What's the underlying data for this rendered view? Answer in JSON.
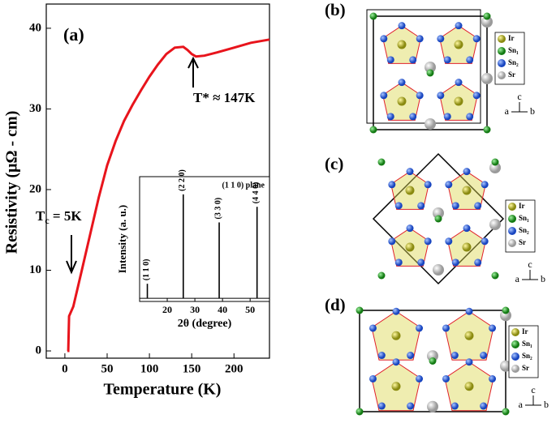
{
  "chart_data": {
    "type": "line",
    "label": "(a)",
    "x_label": "Temperature  (K)",
    "y_label": "Resistivity  (μΩ - cm)",
    "xlim": [
      -22,
      242
    ],
    "ylim": [
      -0.9,
      43
    ],
    "xticks": [
      0,
      50,
      100,
      150,
      200
    ],
    "yticks": [
      0,
      10,
      20,
      30,
      40
    ],
    "x": [
      3,
      4,
      5,
      10,
      20,
      30,
      40,
      50,
      60,
      70,
      80,
      90,
      100,
      110,
      120,
      130,
      140,
      145,
      150,
      155,
      165,
      180,
      200,
      220,
      242
    ],
    "series": [
      {
        "color": "#e8141c",
        "values": [
          0,
          0,
          4.3,
          5.5,
          10,
          14.5,
          19,
          23,
          26,
          28.5,
          30.5,
          32.3,
          34,
          35.5,
          36.8,
          37.6,
          37.7,
          37.3,
          36.8,
          36.5,
          36.6,
          37,
          37.6,
          38.2,
          38.6
        ]
      }
    ],
    "annotations": {
      "tstar": "T* ≈ 147K",
      "tc_symbol": "T",
      "tc_sub": "c",
      "tc_rest": " = 5K"
    },
    "inset": {
      "type": "bar",
      "title": "(1 1 0) plane",
      "x_label": "2θ (degree)",
      "y_label": "Intensity  (a. u.)",
      "xlim": [
        10,
        57
      ],
      "ylim": [
        -0.03,
        1.17
      ],
      "xticks": [
        20,
        30,
        40,
        50
      ],
      "x": [
        12.8,
        25.8,
        38.8,
        52.5
      ],
      "values": [
        0.14,
        1.0,
        0.73,
        0.88
      ],
      "value_labels": [
        "(1 1 0)",
        "(2 2 0)",
        "(3 3 0)",
        "(4 4 0)"
      ]
    }
  },
  "panels": [
    {
      "label": "(b)",
      "legend": [
        "Ir",
        "Sn₁",
        "Sn₂",
        "Sr"
      ],
      "axes": [
        "c",
        "a",
        "b"
      ]
    },
    {
      "label": "(c)",
      "legend": [
        "Ir",
        "Sn₁",
        "Sn₂",
        "Sr"
      ],
      "axes": [
        "c",
        "a",
        "b"
      ]
    },
    {
      "label": "(d)",
      "legend": [
        "Ir",
        "Sn₁",
        "Sn₂",
        "Sr"
      ],
      "axes": [
        "c",
        "a",
        "b"
      ]
    }
  ]
}
